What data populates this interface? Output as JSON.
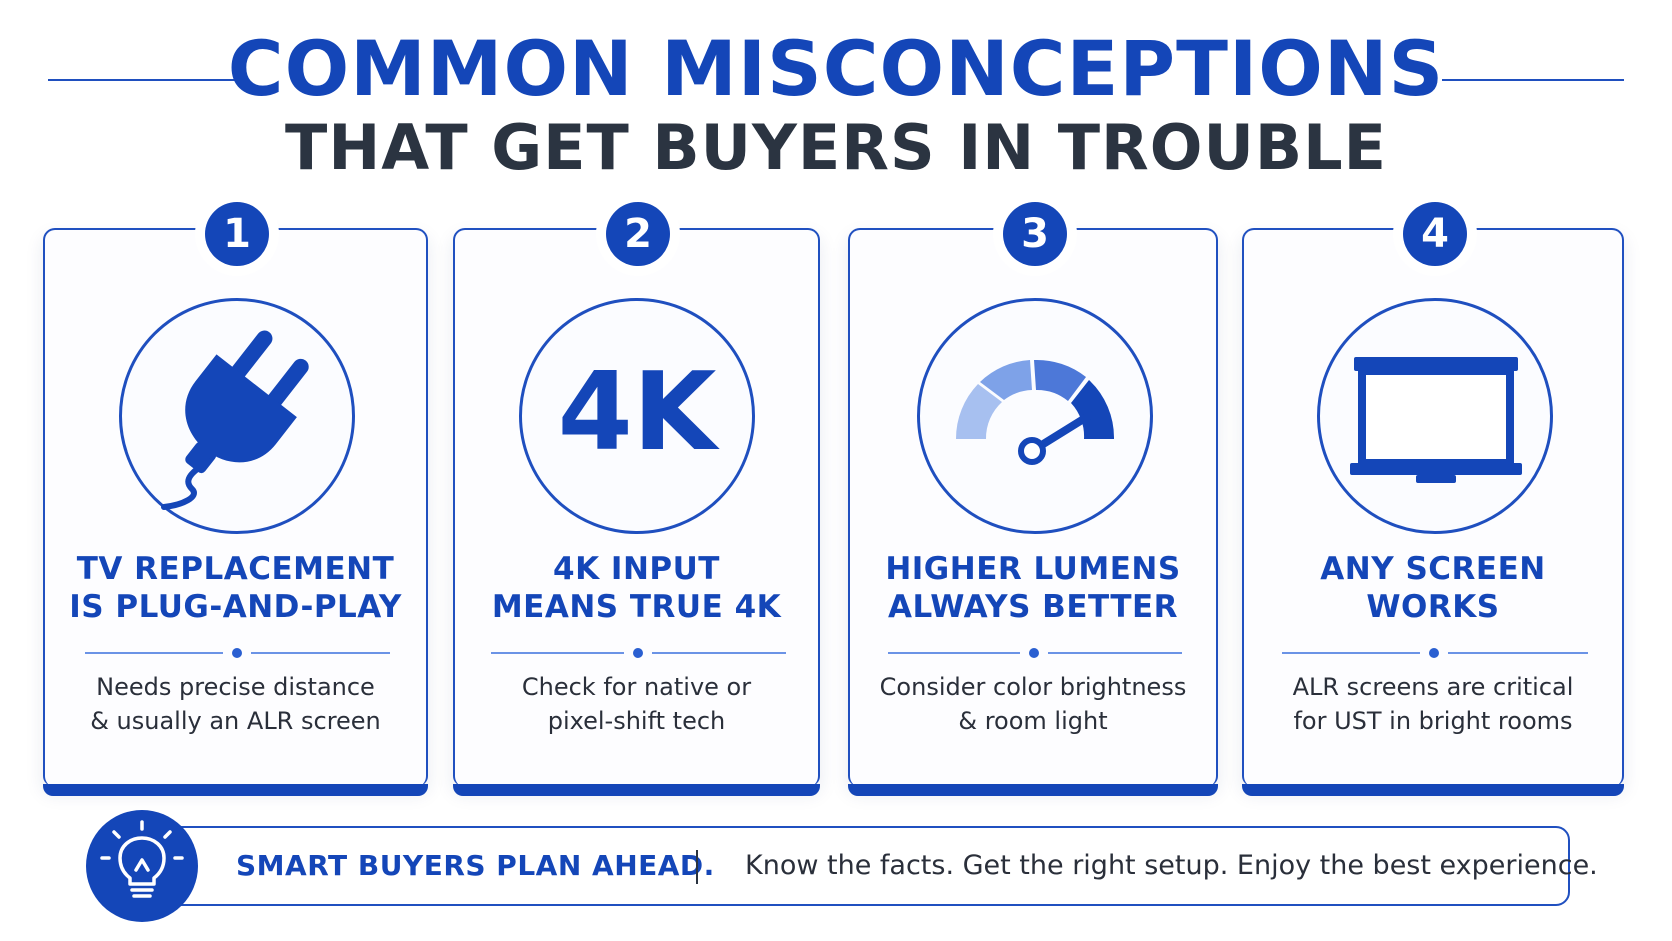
{
  "header": {
    "title": "COMMON MISCONCEPTIONS",
    "subtitle": "THAT GET BUYERS IN TROUBLE"
  },
  "cards": [
    {
      "number": "1",
      "icon": "plug-icon",
      "title_line1": "TV REPLACEMENT",
      "title_line2": "IS PLUG-AND-PLAY",
      "desc_line1": "Needs precise distance",
      "desc_line2": "& usually an ALR screen"
    },
    {
      "number": "2",
      "icon": "4k-icon",
      "icon_text": "4K",
      "title_line1": "4K INPUT",
      "title_line2": "MEANS TRUE 4K",
      "desc_line1": "Check for native or",
      "desc_line2": "pixel-shift tech"
    },
    {
      "number": "3",
      "icon": "gauge-icon",
      "title_line1": "HIGHER LUMENS",
      "title_line2": "ALWAYS BETTER",
      "desc_line1": "Consider color brightness",
      "desc_line2": "& room light"
    },
    {
      "number": "4",
      "icon": "projector-screen-icon",
      "title_line1": "ANY SCREEN",
      "title_line2": "WORKS",
      "desc_line1": "ALR screens are critical",
      "desc_line2": "for UST in bright rooms"
    }
  ],
  "footer": {
    "icon": "lightbulb-icon",
    "headline": "SMART BUYERS PLAN AHEAD.",
    "message": "Know the facts. Get the right setup. Enjoy the best experience."
  },
  "colors": {
    "primary_blue": "#1446b8",
    "dark_text": "#2b3441",
    "light_blue": "#6b93e6"
  }
}
